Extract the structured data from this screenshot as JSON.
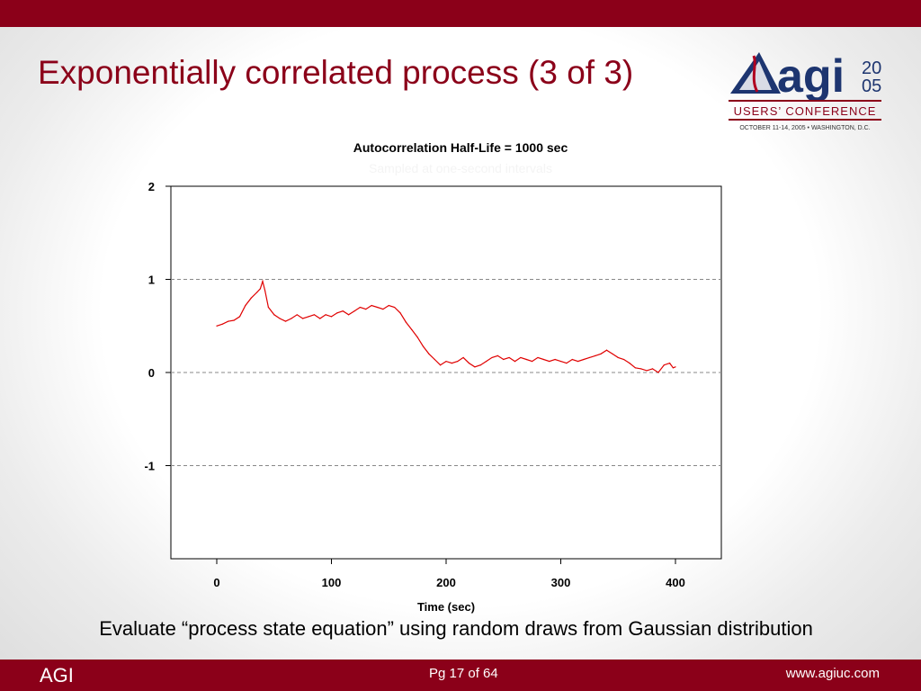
{
  "slide": {
    "title": "Exponentially correlated process (3 of 3)",
    "caption": "Evaluate “process state equation” using random draws from Gaussian distribution",
    "brand_color": "#8b0019"
  },
  "logo": {
    "word": "agi",
    "year_top": "20",
    "year_bottom": "05",
    "line1": "USERS’ CONFERENCE",
    "line2": "OCTOBER 11-14, 2005 • WASHINGTON, D.C."
  },
  "footer": {
    "left": "AGI",
    "center": "Pg 17 of 64",
    "right": "www.agiuc.com"
  },
  "chart_data": {
    "type": "line",
    "title": "Autocorrelation Half-Life = 1000 sec",
    "subtitle": "Sampled at one-second intervals",
    "xlabel": "Time (sec)",
    "ylabel": "",
    "xlim": [
      -40,
      440
    ],
    "ylim": [
      -2,
      2
    ],
    "x_ticks": [
      0,
      100,
      200,
      300,
      400
    ],
    "y_ticks": [
      2,
      1,
      0,
      -1
    ],
    "grid": "horizontal dashed at y = 1, 0, -1",
    "series": [
      {
        "color": "#e00000",
        "points": [
          [
            0,
            0.5
          ],
          [
            5,
            0.52
          ],
          [
            10,
            0.55
          ],
          [
            15,
            0.56
          ],
          [
            20,
            0.6
          ],
          [
            25,
            0.72
          ],
          [
            30,
            0.8
          ],
          [
            35,
            0.86
          ],
          [
            38,
            0.9
          ],
          [
            40,
            0.98
          ],
          [
            42,
            0.88
          ],
          [
            45,
            0.7
          ],
          [
            50,
            0.62
          ],
          [
            55,
            0.58
          ],
          [
            60,
            0.55
          ],
          [
            65,
            0.58
          ],
          [
            70,
            0.62
          ],
          [
            75,
            0.58
          ],
          [
            80,
            0.6
          ],
          [
            85,
            0.62
          ],
          [
            90,
            0.58
          ],
          [
            95,
            0.62
          ],
          [
            100,
            0.6
          ],
          [
            105,
            0.64
          ],
          [
            110,
            0.66
          ],
          [
            115,
            0.62
          ],
          [
            120,
            0.66
          ],
          [
            125,
            0.7
          ],
          [
            130,
            0.68
          ],
          [
            135,
            0.72
          ],
          [
            140,
            0.7
          ],
          [
            145,
            0.68
          ],
          [
            150,
            0.72
          ],
          [
            155,
            0.7
          ],
          [
            160,
            0.64
          ],
          [
            165,
            0.54
          ],
          [
            170,
            0.46
          ],
          [
            175,
            0.38
          ],
          [
            180,
            0.28
          ],
          [
            185,
            0.2
          ],
          [
            190,
            0.14
          ],
          [
            195,
            0.08
          ],
          [
            200,
            0.12
          ],
          [
            205,
            0.1
          ],
          [
            210,
            0.12
          ],
          [
            215,
            0.16
          ],
          [
            220,
            0.1
          ],
          [
            225,
            0.06
          ],
          [
            230,
            0.08
          ],
          [
            235,
            0.12
          ],
          [
            240,
            0.16
          ],
          [
            245,
            0.18
          ],
          [
            250,
            0.14
          ],
          [
            255,
            0.16
          ],
          [
            260,
            0.12
          ],
          [
            265,
            0.16
          ],
          [
            270,
            0.14
          ],
          [
            275,
            0.12
          ],
          [
            280,
            0.16
          ],
          [
            285,
            0.14
          ],
          [
            290,
            0.12
          ],
          [
            295,
            0.14
          ],
          [
            300,
            0.12
          ],
          [
            305,
            0.1
          ],
          [
            310,
            0.14
          ],
          [
            315,
            0.12
          ],
          [
            320,
            0.14
          ],
          [
            325,
            0.16
          ],
          [
            330,
            0.18
          ],
          [
            335,
            0.2
          ],
          [
            340,
            0.24
          ],
          [
            345,
            0.2
          ],
          [
            350,
            0.16
          ],
          [
            355,
            0.14
          ],
          [
            360,
            0.1
          ],
          [
            365,
            0.05
          ],
          [
            370,
            0.04
          ],
          [
            375,
            0.02
          ],
          [
            380,
            0.04
          ],
          [
            385,
            0.0
          ],
          [
            390,
            0.08
          ],
          [
            395,
            0.1
          ],
          [
            398,
            0.05
          ],
          [
            400,
            0.06
          ]
        ]
      }
    ]
  }
}
